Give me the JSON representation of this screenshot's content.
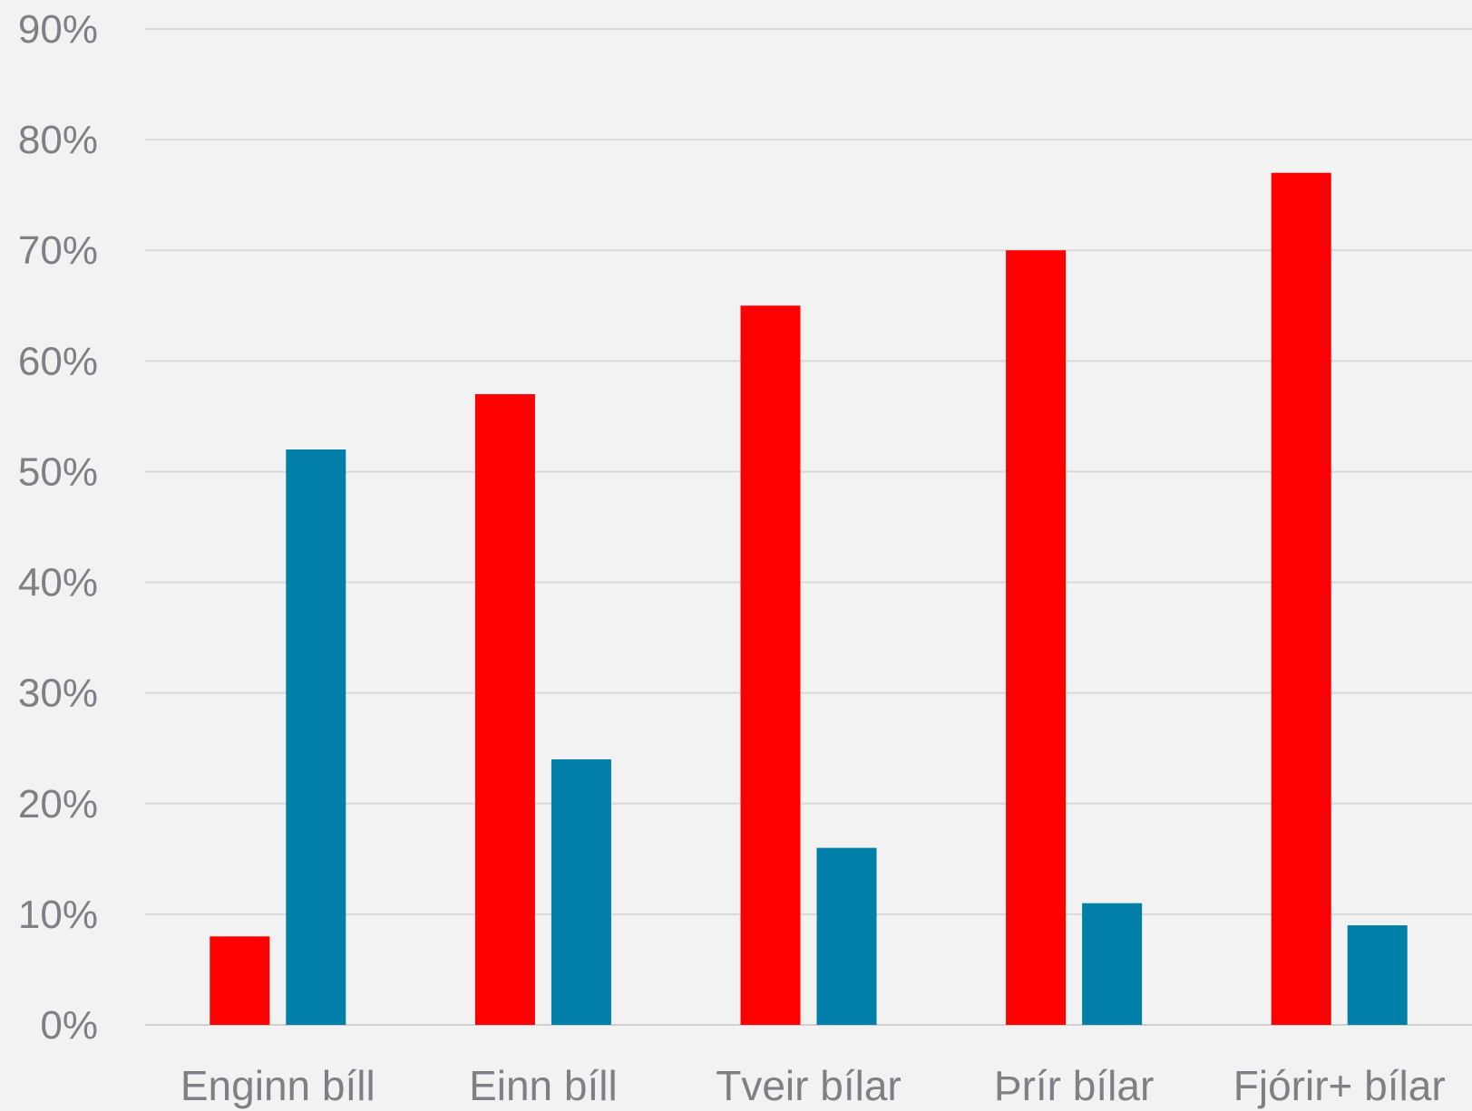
{
  "chart_data": {
    "type": "bar",
    "categories": [
      "Enginn bíll",
      "Einn bíll",
      "Tveir bílar",
      "Þrír bílar",
      "Fjórir+ bílar"
    ],
    "series": [
      {
        "values": [
          8,
          57,
          65,
          70,
          77
        ],
        "color": "#ff0000"
      },
      {
        "values": [
          52,
          24,
          16,
          11,
          9
        ],
        "color": "#0080a8"
      }
    ],
    "y_ticks": [
      "0%",
      "10%",
      "20%",
      "30%",
      "40%",
      "50%",
      "60%",
      "70%",
      "80%",
      "90%"
    ],
    "ylim": [
      0,
      90
    ],
    "y_unit": "%",
    "grid": true,
    "legend": "none",
    "title": "",
    "xlabel": "",
    "ylabel": ""
  },
  "colors": {
    "background": "#f2f2f2",
    "gridline": "#d9d9d9",
    "label": "#7f7f86"
  }
}
